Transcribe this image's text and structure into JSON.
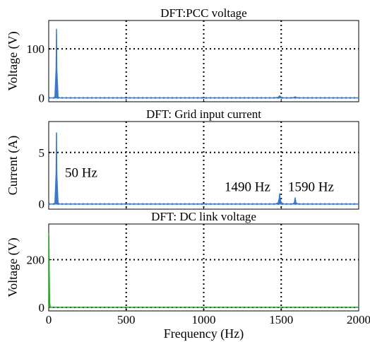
{
  "chart_data": [
    {
      "type": "area",
      "title": "DFT:PCC voltage",
      "xlabel": "",
      "ylabel": "Voltage (V)",
      "xlim": [
        0,
        2000
      ],
      "ylim": [
        -8,
        158
      ],
      "xticks": [
        0,
        500,
        1000,
        1500,
        2000
      ],
      "yticks": [
        0,
        100
      ],
      "xtick_labels_visible": false,
      "grid": true,
      "color": "#3a78c8",
      "series": [
        {
          "x": [
            0,
            30,
            40,
            48,
            50,
            52,
            60,
            70,
            1460,
            1480,
            1490,
            1500,
            1520,
            1560,
            1580,
            1590,
            1600,
            1620,
            2000
          ],
          "y": [
            0,
            0,
            2,
            60,
            140,
            60,
            2,
            0,
            0,
            1,
            4,
            1,
            0,
            0,
            0.5,
            2,
            0.5,
            0,
            0
          ]
        }
      ]
    },
    {
      "type": "area",
      "title": "DFT: Grid input current",
      "xlabel": "",
      "ylabel": "Current (A)",
      "xlim": [
        0,
        2000
      ],
      "ylim": [
        -0.5,
        8.0
      ],
      "xticks": [
        0,
        500,
        1000,
        1500,
        2000
      ],
      "yticks": [
        0,
        5
      ],
      "xtick_labels_visible": false,
      "grid": true,
      "color": "#3a78c8",
      "annotations": [
        {
          "text": "50 Hz",
          "x": 50
        },
        {
          "text": "1490 Hz",
          "x": 1490
        },
        {
          "text": "1590 Hz",
          "x": 1590
        }
      ],
      "series": [
        {
          "x": [
            0,
            30,
            40,
            48,
            50,
            52,
            60,
            70,
            1460,
            1480,
            1488,
            1490,
            1492,
            1500,
            1520,
            1570,
            1585,
            1590,
            1595,
            1610,
            2000
          ],
          "y": [
            0,
            0,
            0.1,
            3.0,
            6.9,
            3.0,
            0.1,
            0,
            0,
            0.1,
            0.6,
            1.0,
            0.6,
            0.1,
            0,
            0,
            0.1,
            0.6,
            0.1,
            0,
            0
          ]
        }
      ]
    },
    {
      "type": "area",
      "title": "DFT: DC link voltage",
      "xlabel": "Frequency (Hz)",
      "ylabel": "Voltage (V)",
      "xlim": [
        0,
        2000
      ],
      "ylim": [
        -15,
        350
      ],
      "xticks": [
        0,
        500,
        1000,
        1500,
        2000
      ],
      "yticks": [
        0,
        200
      ],
      "xtick_labels_visible": true,
      "grid": true,
      "color": "#2ca02c",
      "series": [
        {
          "x": [
            0,
            1,
            3,
            6,
            10,
            2000
          ],
          "y": [
            310,
            300,
            150,
            20,
            0,
            0
          ]
        }
      ]
    }
  ]
}
